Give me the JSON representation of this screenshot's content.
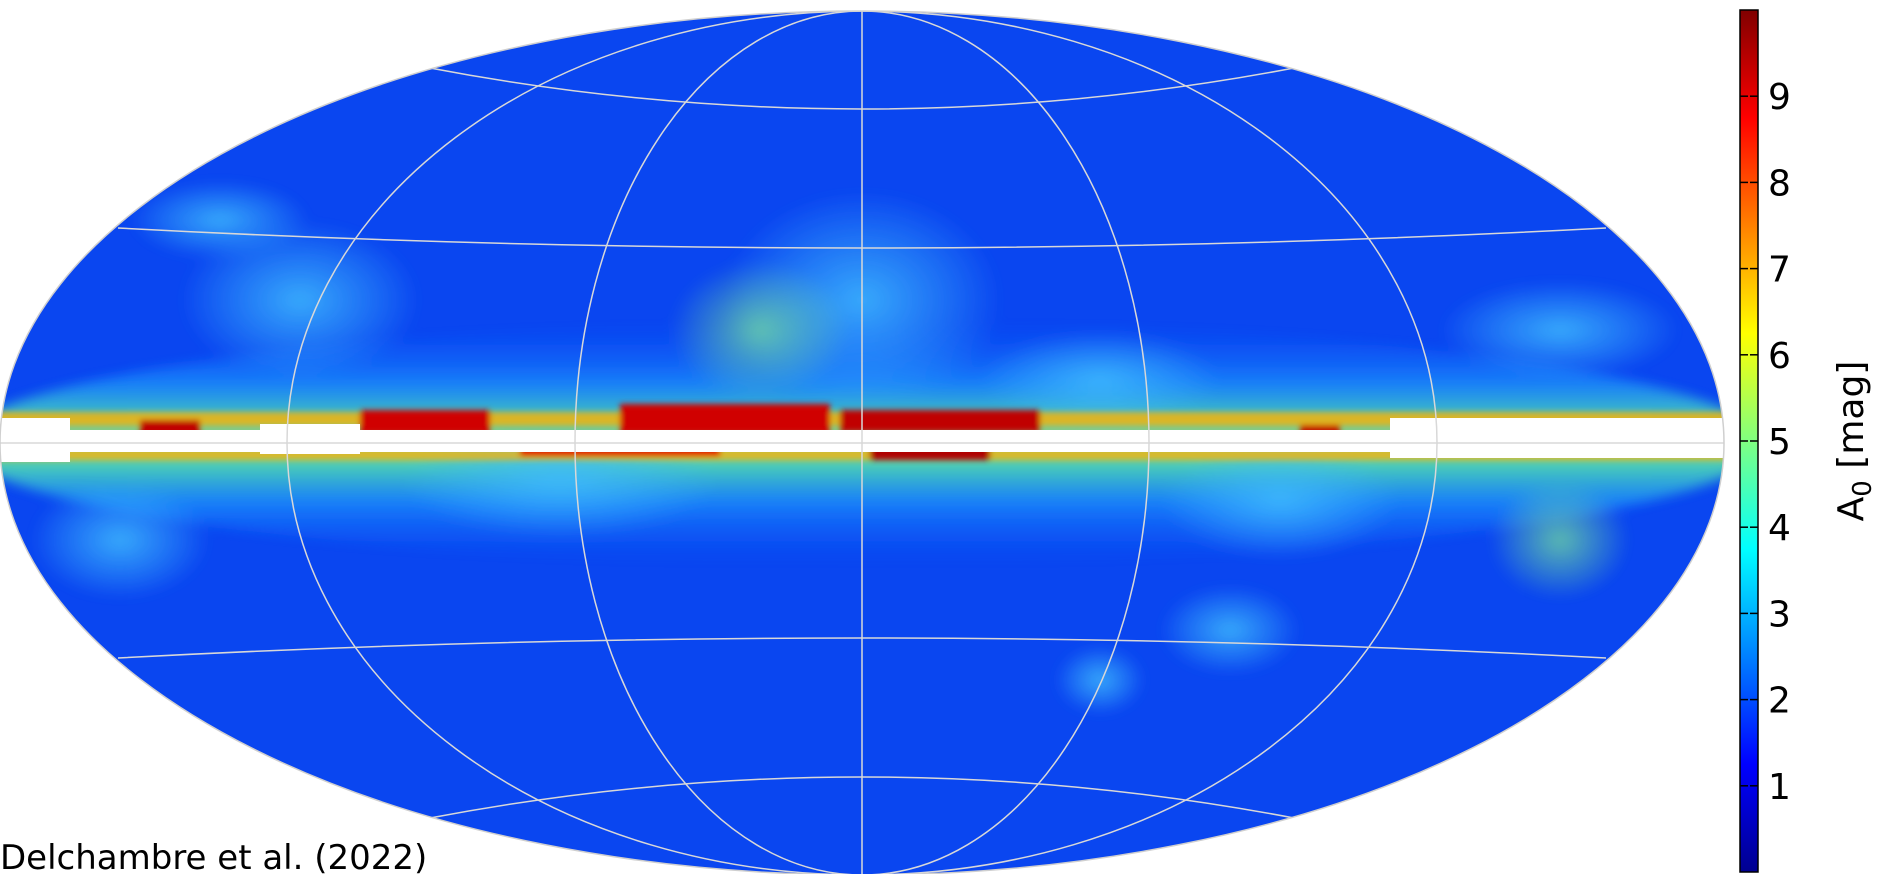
{
  "map": {
    "projection": "Mollweide (all-sky)",
    "graticule": true,
    "quantity": "interstellar extinction A0"
  },
  "colorbar": {
    "title_main": "A",
    "title_sub": "0",
    "title_unit": " [mag]",
    "ticks": [
      "1",
      "2",
      "3",
      "4",
      "5",
      "6",
      "7",
      "8",
      "9"
    ],
    "range": [
      0,
      10
    ],
    "colors": [
      "#00008f",
      "#0000ff",
      "#0080ff",
      "#00ffff",
      "#80ff80",
      "#ffff00",
      "#ff8000",
      "#ff0000",
      "#800000"
    ]
  },
  "credit": "Delchambre et al. (2022)"
}
